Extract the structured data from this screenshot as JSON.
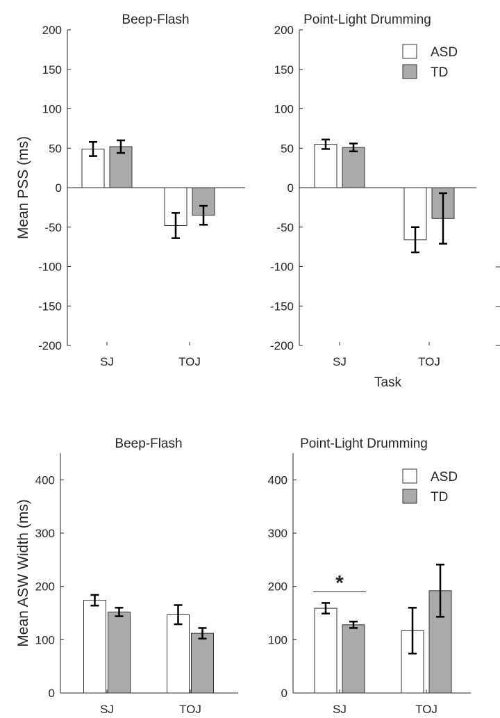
{
  "chart_data": [
    {
      "type": "bar",
      "title": "Beep-Flash",
      "ylabel": "Mean PSS (ms)",
      "xlabel": "",
      "ylim": [
        -200,
        200
      ],
      "yticks": [
        200,
        150,
        100,
        50,
        0,
        -50,
        -100,
        -150,
        -200
      ],
      "categories": [
        "SJ",
        "TOJ"
      ],
      "series": [
        {
          "name": "ASD",
          "color": "#ffffff",
          "values": [
            49,
            -48
          ],
          "error": [
            9,
            16
          ]
        },
        {
          "name": "TD",
          "color": "#aaaaaa",
          "values": [
            52,
            -35
          ],
          "error": [
            8,
            12
          ]
        }
      ],
      "legend": false,
      "annotations": []
    },
    {
      "type": "bar",
      "title": "Point-Light Drumming",
      "ylabel": "",
      "xlabel": "Task",
      "ylim": [
        -200,
        200
      ],
      "yticks": [
        200,
        150,
        100,
        50,
        0,
        -50,
        -100,
        -150,
        -200
      ],
      "categories": [
        "SJ",
        "TOJ"
      ],
      "series": [
        {
          "name": "ASD",
          "color": "#ffffff",
          "values": [
            55,
            -66
          ],
          "error": [
            6,
            16
          ]
        },
        {
          "name": "TD",
          "color": "#aaaaaa",
          "values": [
            51,
            -39
          ],
          "error": [
            5,
            32
          ]
        }
      ],
      "legend": true,
      "legend_position": "top-right",
      "annotations": []
    },
    {
      "type": "bar",
      "title": "Beep-Flash",
      "ylabel": "Mean ASW Width (ms)",
      "xlabel": "",
      "ylim": [
        0,
        450
      ],
      "yticks": [
        400,
        300,
        200,
        100,
        0
      ],
      "categories": [
        "SJ",
        "TOJ"
      ],
      "series": [
        {
          "name": "ASD",
          "color": "#ffffff",
          "values": [
            174,
            147
          ],
          "error": [
            10,
            18
          ]
        },
        {
          "name": "TD",
          "color": "#aaaaaa",
          "values": [
            152,
            112
          ],
          "error": [
            8,
            10
          ]
        }
      ],
      "legend": false,
      "annotations": []
    },
    {
      "type": "bar",
      "title": "Point-Light Drumming",
      "ylabel": "",
      "xlabel": "",
      "ylim": [
        0,
        450
      ],
      "yticks": [
        400,
        300,
        200,
        100,
        0
      ],
      "categories": [
        "SJ",
        "TOJ"
      ],
      "series": [
        {
          "name": "ASD",
          "color": "#ffffff",
          "values": [
            159,
            117
          ],
          "error": [
            10,
            43
          ]
        },
        {
          "name": "TD",
          "color": "#aaaaaa",
          "values": [
            128,
            192
          ],
          "error": [
            6,
            49
          ]
        }
      ],
      "legend": true,
      "legend_position": "top-right",
      "annotations": [
        {
          "text": "*",
          "category": "SJ",
          "y": 195
        }
      ]
    }
  ]
}
